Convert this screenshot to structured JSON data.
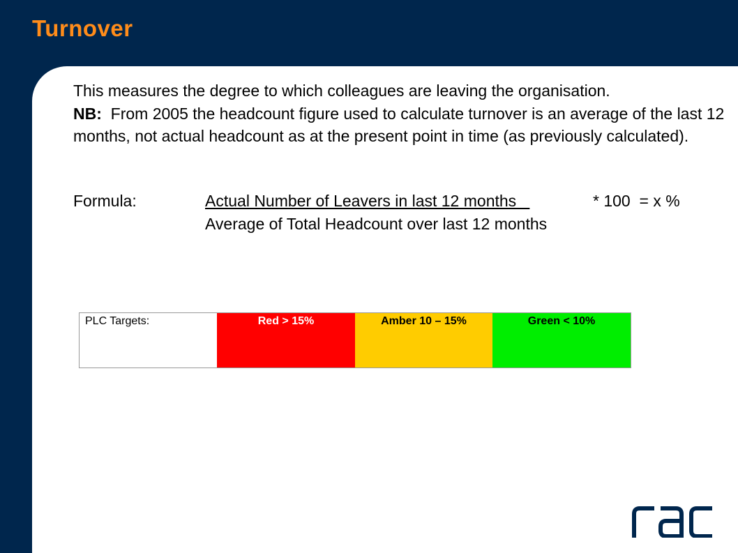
{
  "title": "Turnover",
  "body": {
    "line1": "This measures the degree to which colleagues are leaving the organisation.",
    "nb_label": "NB:",
    "nb_text": "  From 2005 the headcount figure used to calculate turnover is an average of the last 12 months, not actual headcount as at the present point in time (as previously calculated)."
  },
  "formula": {
    "label": "Formula:",
    "numerator": "Actual Number of Leavers in last 12 months   ",
    "multiplier": "* 100  = x %",
    "denominator": "Average of Total Headcount over last 12 months"
  },
  "targets": {
    "label": "PLC Targets:",
    "red": "Red > 15%",
    "amber": "Amber 10 – 15%",
    "green": "Green < 10%"
  },
  "logo_text": "rac",
  "colors": {
    "background": "#00264d",
    "title": "#ff8c1a",
    "red": "#ff0000",
    "amber": "#ffcc00",
    "green": "#00ee00"
  }
}
